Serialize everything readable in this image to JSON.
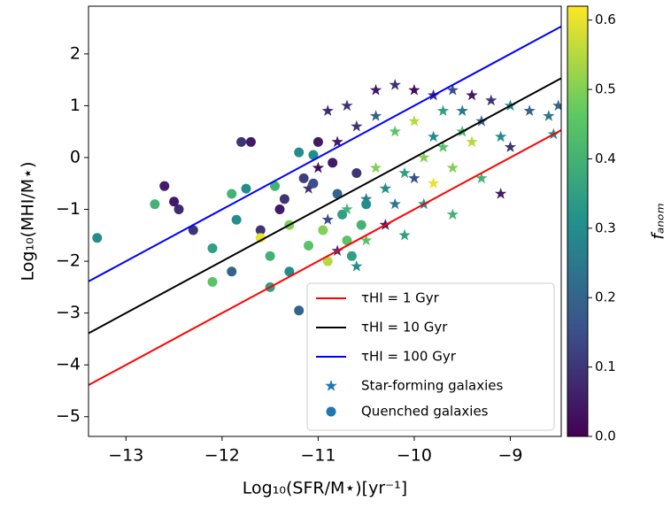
{
  "chart_data": {
    "type": "scatter",
    "x_label": "Log₁₀(SFR/M⋆)[yr⁻¹]",
    "y_label": "Log₁₀(MHI/M⋆)",
    "xlim": [
      -13.39,
      -8.47
    ],
    "ylim": [
      -5.38,
      2.92
    ],
    "xticks": [
      {
        "value": -13,
        "label": "−13"
      },
      {
        "value": -12,
        "label": "−12"
      },
      {
        "value": -11,
        "label": "−11"
      },
      {
        "value": -10,
        "label": "−10"
      },
      {
        "value": -9,
        "label": "−9"
      }
    ],
    "yticks": [
      {
        "value": -5,
        "label": "−5"
      },
      {
        "value": -4,
        "label": "−4"
      },
      {
        "value": -3,
        "label": "−3"
      },
      {
        "value": -2,
        "label": "−2"
      },
      {
        "value": -1,
        "label": "−1"
      },
      0,
      1,
      2
    ],
    "legend": "lower right",
    "lines": [
      {
        "name": "τHI = 1 Gyr",
        "color": "#ff0000",
        "x": [
          -13.39,
          -8.47
        ],
        "values": [
          -4.39,
          0.53
        ]
      },
      {
        "name": "τHI = 10 Gyr",
        "color": "#000000",
        "x": [
          -13.39,
          -8.47
        ],
        "values": [
          -3.39,
          1.53
        ]
      },
      {
        "name": "τHI = 100 Gyr",
        "color": "#0000ff",
        "x": [
          -13.39,
          -8.47
        ],
        "values": [
          -2.39,
          2.53
        ]
      }
    ],
    "series": [
      {
        "name": "Star-forming galaxies",
        "marker": "star",
        "color": "#1f77b4",
        "x": [
          -10.4,
          -10.2,
          -10.0,
          -9.8,
          -9.6,
          -9.4,
          -9.2,
          -9.0,
          -8.8,
          -8.6,
          -8.5,
          -8.55,
          -9.1,
          -9.5,
          -9.7,
          -9.9,
          -10.1,
          -10.3,
          -10.5,
          -10.7,
          -10.9,
          -11.1,
          -10.8,
          -10.6,
          -10.4,
          -10.2,
          -10.0,
          -9.8,
          -9.6,
          -9.4,
          -9.3,
          -9.9,
          -10.1,
          -10.3,
          -10.5,
          -10.6,
          -10.8,
          -11.0,
          -10.9,
          -10.7,
          -9.7,
          -9.5,
          -9.3,
          -9.1,
          -9.0,
          -10.0,
          -10.2,
          -9.8,
          -9.6,
          -10.4
        ],
        "values": [
          1.3,
          1.4,
          1.3,
          1.2,
          1.3,
          1.2,
          1.1,
          1.0,
          0.9,
          0.8,
          1.0,
          0.45,
          -0.7,
          0.5,
          0.2,
          0.0,
          -0.3,
          -0.6,
          -0.8,
          -1.0,
          -1.2,
          -0.6,
          0.3,
          0.6,
          0.8,
          0.5,
          0.7,
          0.4,
          -0.2,
          0.3,
          -0.4,
          -0.9,
          -1.5,
          -1.3,
          -1.6,
          -2.1,
          -1.8,
          -0.2,
          0.9,
          1.0,
          0.9,
          0.9,
          0.7,
          0.4,
          0.2,
          -0.4,
          -0.9,
          -0.5,
          -1.1,
          -0.2
        ],
        "colors": [
          0.05,
          0.1,
          0.02,
          0.08,
          0.15,
          0.05,
          0.1,
          0.3,
          0.2,
          0.25,
          0.2,
          0.3,
          0.05,
          0.4,
          0.45,
          0.5,
          0.35,
          0.3,
          0.25,
          0.4,
          0.15,
          0.1,
          0.05,
          0.1,
          0.2,
          0.45,
          0.55,
          0.3,
          0.5,
          0.55,
          0.4,
          0.3,
          0.35,
          0.05,
          0.45,
          0.3,
          0.1,
          0.02,
          0.08,
          0.1,
          0.35,
          0.25,
          0.2,
          0.3,
          0.1,
          0.15,
          0.25,
          0.6,
          0.4,
          0.5
        ]
      },
      {
        "name": "Quenched galaxies",
        "marker": "circle",
        "color": "#1f77b4",
        "x": [
          -13.3,
          -12.6,
          -12.45,
          -12.5,
          -12.3,
          -12.1,
          -12.1,
          -11.9,
          -11.85,
          -11.8,
          -11.7,
          -11.75,
          -11.6,
          -11.5,
          -11.5,
          -11.4,
          -11.3,
          -11.35,
          -11.2,
          -11.2,
          -11.1,
          -11.0,
          -11.05,
          -10.95,
          -10.9,
          -10.85,
          -10.8,
          -10.75,
          -10.7,
          -10.6,
          -10.55,
          -10.5,
          -11.6,
          -11.15,
          -11.45,
          -12.7,
          -11.9,
          -11.3,
          -10.65,
          -11.05
        ],
        "values": [
          -1.55,
          -0.55,
          -1.0,
          -0.85,
          -1.4,
          -2.4,
          -1.75,
          -2.2,
          -1.2,
          0.3,
          0.3,
          -0.6,
          -1.4,
          -2.5,
          -1.9,
          -1.0,
          -2.2,
          -0.8,
          -2.95,
          0.1,
          -1.7,
          0.3,
          -0.5,
          -1.4,
          -2.0,
          -0.1,
          -0.7,
          -1.1,
          -1.6,
          -0.3,
          -1.3,
          -0.9,
          -1.55,
          -0.4,
          -0.55,
          -0.9,
          -0.7,
          -1.3,
          -1.9,
          0.05
        ],
        "colors": [
          0.3,
          0.05,
          0.08,
          0.05,
          0.1,
          0.45,
          0.35,
          0.2,
          0.3,
          0.1,
          0.05,
          0.3,
          0.1,
          0.35,
          0.4,
          0.05,
          0.3,
          0.1,
          0.2,
          0.3,
          0.45,
          0.05,
          0.15,
          0.5,
          0.55,
          0.05,
          0.2,
          0.35,
          0.45,
          0.1,
          0.4,
          0.3,
          0.6,
          0.12,
          0.4,
          0.4,
          0.4,
          0.5,
          0.35,
          0.3
        ]
      }
    ],
    "colorbar": {
      "label": "fₐₙₒₘ",
      "lim": [
        0,
        0.62
      ],
      "ticks": [
        {
          "value": 0,
          "label": "0.0"
        },
        0.1,
        0.2,
        0.3,
        0.4,
        0.5,
        0.6
      ],
      "colormap": [
        "#440154",
        "#3b528b",
        "#21918c",
        "#5ec962",
        "#fde725"
      ]
    }
  }
}
